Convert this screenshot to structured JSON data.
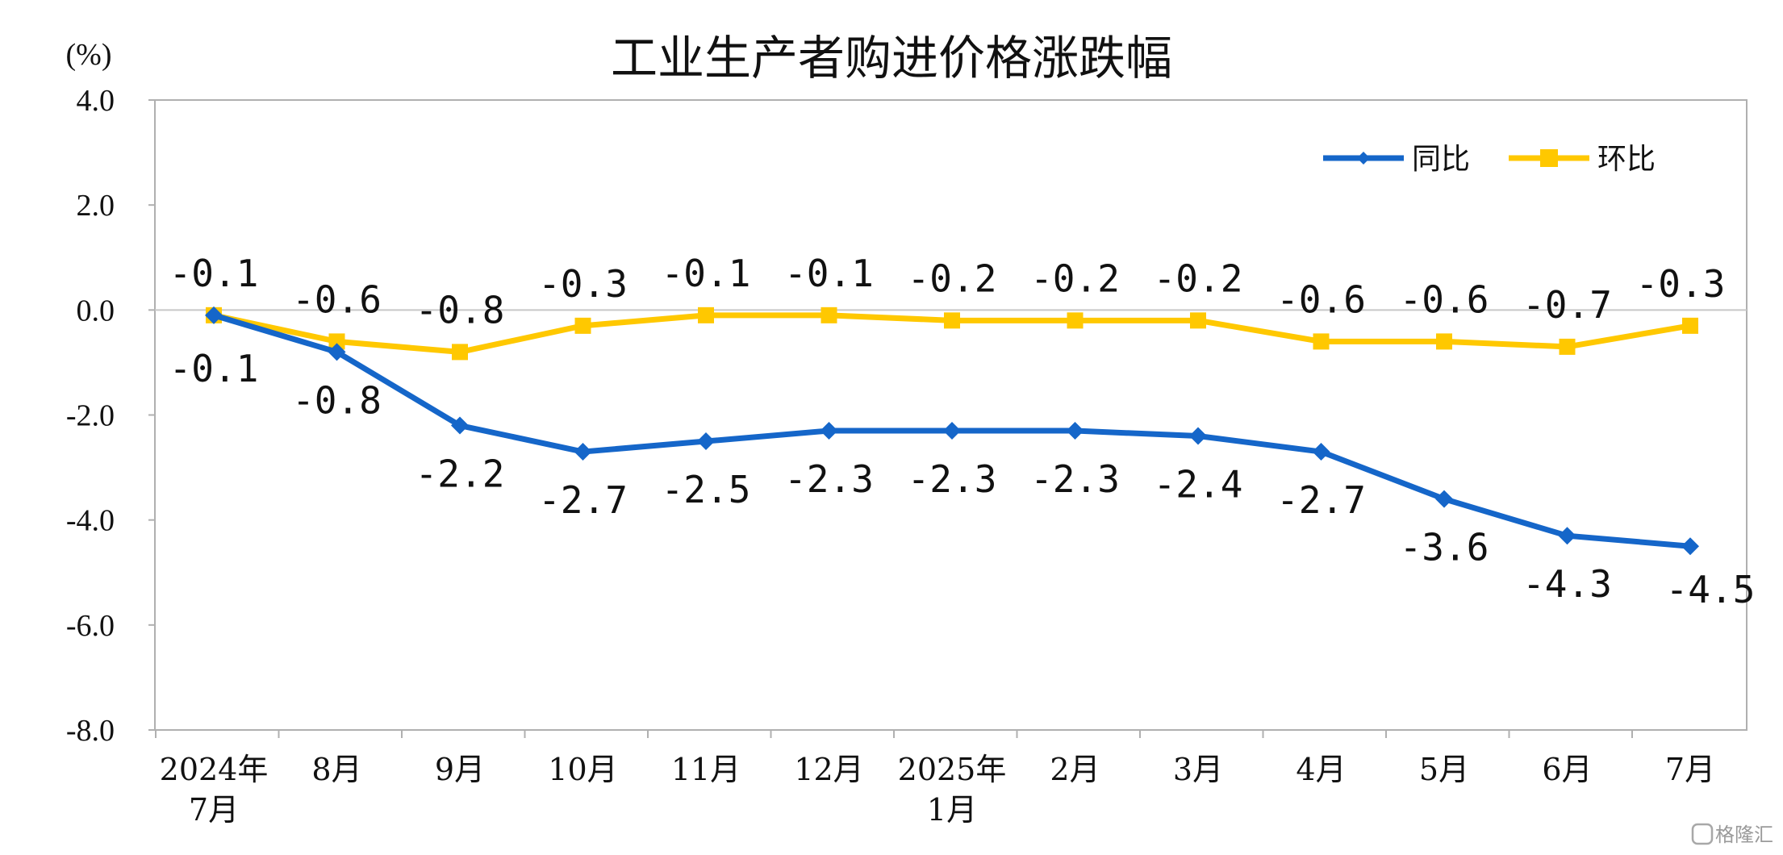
{
  "chart_data": {
    "type": "line",
    "title": "工业生产者购进价格涨跌幅",
    "y_unit": "(%)",
    "categories": [
      [
        "2024年",
        "7月"
      ],
      [
        "8月"
      ],
      [
        "9月"
      ],
      [
        "10月"
      ],
      [
        "11月"
      ],
      [
        "12月"
      ],
      [
        "2025年",
        "1月"
      ],
      [
        "2月"
      ],
      [
        "3月"
      ],
      [
        "4月"
      ],
      [
        "5月"
      ],
      [
        "6月"
      ],
      [
        "7月"
      ]
    ],
    "ylim": [
      -8.0,
      4.0
    ],
    "yticks": [
      "4.0",
      "2.0",
      "0.0",
      "-2.0",
      "-4.0",
      "-6.0",
      "-8.0"
    ],
    "grid": false,
    "legend_position": "top-right",
    "series": [
      {
        "name": "同比",
        "color": "#1566C9",
        "marker": "diamond",
        "values": [
          -0.1,
          -0.8,
          -2.2,
          -2.7,
          -2.5,
          -2.3,
          -2.3,
          -2.3,
          -2.4,
          -2.7,
          -3.6,
          -4.3,
          -4.5
        ],
        "labels": [
          "-0.1",
          "-0.8",
          "-2.2",
          "-2.7",
          "-2.5",
          "-2.3",
          "-2.3",
          "-2.3",
          "-2.4",
          "-2.7",
          "-3.6",
          "-4.3",
          "-4.5"
        ]
      },
      {
        "name": "环比",
        "color": "#FFC800",
        "marker": "square",
        "values": [
          -0.1,
          -0.6,
          -0.8,
          -0.3,
          -0.1,
          -0.1,
          -0.2,
          -0.2,
          -0.2,
          -0.6,
          -0.6,
          -0.7,
          -0.3
        ],
        "labels": [
          "-0.1",
          "-0.6",
          "-0.8",
          "-0.3",
          "-0.1",
          "-0.1",
          "-0.2",
          "-0.2",
          "-0.2",
          "-0.6",
          "-0.6",
          "-0.7",
          "-0.3"
        ]
      }
    ],
    "watermark": "格隆汇"
  }
}
